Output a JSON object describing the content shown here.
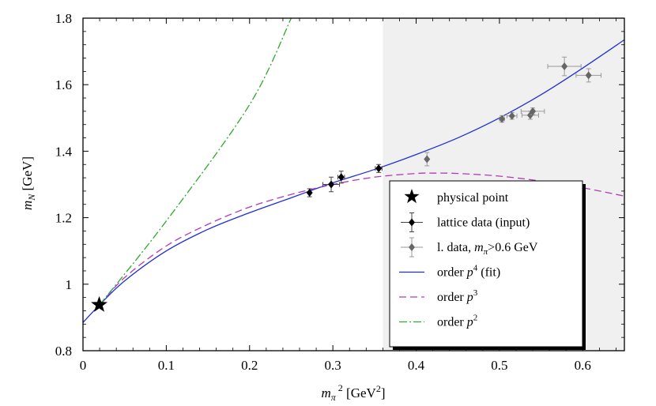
{
  "chart_data": {
    "type": "line",
    "xlabel": "mπ² [GeV²]",
    "ylabel": "mN [GeV]",
    "xlim": [
      0,
      0.65
    ],
    "ylim": [
      0.8,
      1.8
    ],
    "x_ticks": [
      "0",
      "0.1",
      "0.2",
      "0.3",
      "0.4",
      "0.5",
      "0.6"
    ],
    "y_ticks": [
      "0.8",
      "1",
      "1.2",
      "1.4",
      "1.6",
      "1.8"
    ],
    "shaded_region_x": [
      0.36,
      0.65
    ],
    "physical_point": {
      "x": 0.0195,
      "y": 0.938
    },
    "series": [
      {
        "name": "lattice data (input)",
        "kind": "points",
        "color": "#000000",
        "points": [
          {
            "x": 0.272,
            "y": 1.275,
            "xerr": 0.0,
            "yerr": 0.012
          },
          {
            "x": 0.298,
            "y": 1.3,
            "xerr": 0.01,
            "yerr": 0.022
          },
          {
            "x": 0.31,
            "y": 1.322,
            "xerr": 0.004,
            "yerr": 0.018
          },
          {
            "x": 0.355,
            "y": 1.348,
            "xerr": 0.004,
            "yerr": 0.012
          }
        ]
      },
      {
        "name": "l. data, mπ>0.6 GeV",
        "kind": "points",
        "color": "#666666",
        "points": [
          {
            "x": 0.413,
            "y": 1.376,
            "xerr": 0.0,
            "yerr": 0.02
          },
          {
            "x": 0.503,
            "y": 1.497,
            "xerr": 0.003,
            "yerr": 0.01
          },
          {
            "x": 0.515,
            "y": 1.506,
            "xerr": 0.006,
            "yerr": 0.01
          },
          {
            "x": 0.537,
            "y": 1.508,
            "xerr": 0.01,
            "yerr": 0.012
          },
          {
            "x": 0.54,
            "y": 1.52,
            "xerr": 0.014,
            "yerr": 0.01
          },
          {
            "x": 0.578,
            "y": 1.655,
            "xerr": 0.02,
            "yerr": 0.028
          },
          {
            "x": 0.607,
            "y": 1.628,
            "xerr": 0.015,
            "yerr": 0.02
          }
        ]
      },
      {
        "name": "order p⁴ (fit)",
        "kind": "curve",
        "color": "#1f2fd8",
        "dash": "",
        "x": [
          0.0,
          0.02,
          0.05,
          0.1,
          0.15,
          0.2,
          0.25,
          0.3,
          0.35,
          0.4,
          0.45,
          0.5,
          0.55,
          0.6,
          0.65
        ],
        "y": [
          0.885,
          0.938,
          1.01,
          1.1,
          1.165,
          1.215,
          1.26,
          1.305,
          1.345,
          1.39,
          1.44,
          1.5,
          1.57,
          1.65,
          1.735
        ]
      },
      {
        "name": "order p³",
        "kind": "curve",
        "color": "#b03ab8",
        "dash": "9,5",
        "x": [
          0.02,
          0.05,
          0.1,
          0.15,
          0.2,
          0.25,
          0.3,
          0.35,
          0.4,
          0.42,
          0.45,
          0.5,
          0.55,
          0.6,
          0.65
        ],
        "y": [
          0.938,
          1.02,
          1.115,
          1.18,
          1.232,
          1.27,
          1.3,
          1.322,
          1.333,
          1.334,
          1.333,
          1.325,
          1.31,
          1.29,
          1.265
        ]
      },
      {
        "name": "order p²",
        "kind": "curve",
        "color": "#2ea82e",
        "dash": "10,3,2,3",
        "x": [
          0.02,
          0.1,
          0.2,
          0.25
        ],
        "y": [
          0.938,
          1.19,
          1.54,
          1.8
        ]
      }
    ],
    "legend": {
      "placement": "bottom-right",
      "entries": [
        {
          "symbol": "star",
          "label_parts": [
            "physical point"
          ]
        },
        {
          "symbol": "diamond-black",
          "label_parts": [
            "lattice data (input)"
          ]
        },
        {
          "symbol": "diamond-gray",
          "label_parts": [
            "l. data, ",
            "m",
            "π",
            ">0.6 GeV"
          ]
        },
        {
          "symbol": "line-blue",
          "label_parts": [
            "order ",
            "p",
            "4",
            " (fit)"
          ]
        },
        {
          "symbol": "line-magenta",
          "label_parts": [
            "order ",
            "p",
            "3"
          ]
        },
        {
          "symbol": "line-green",
          "label_parts": [
            "order ",
            "p",
            "2"
          ]
        }
      ]
    }
  }
}
